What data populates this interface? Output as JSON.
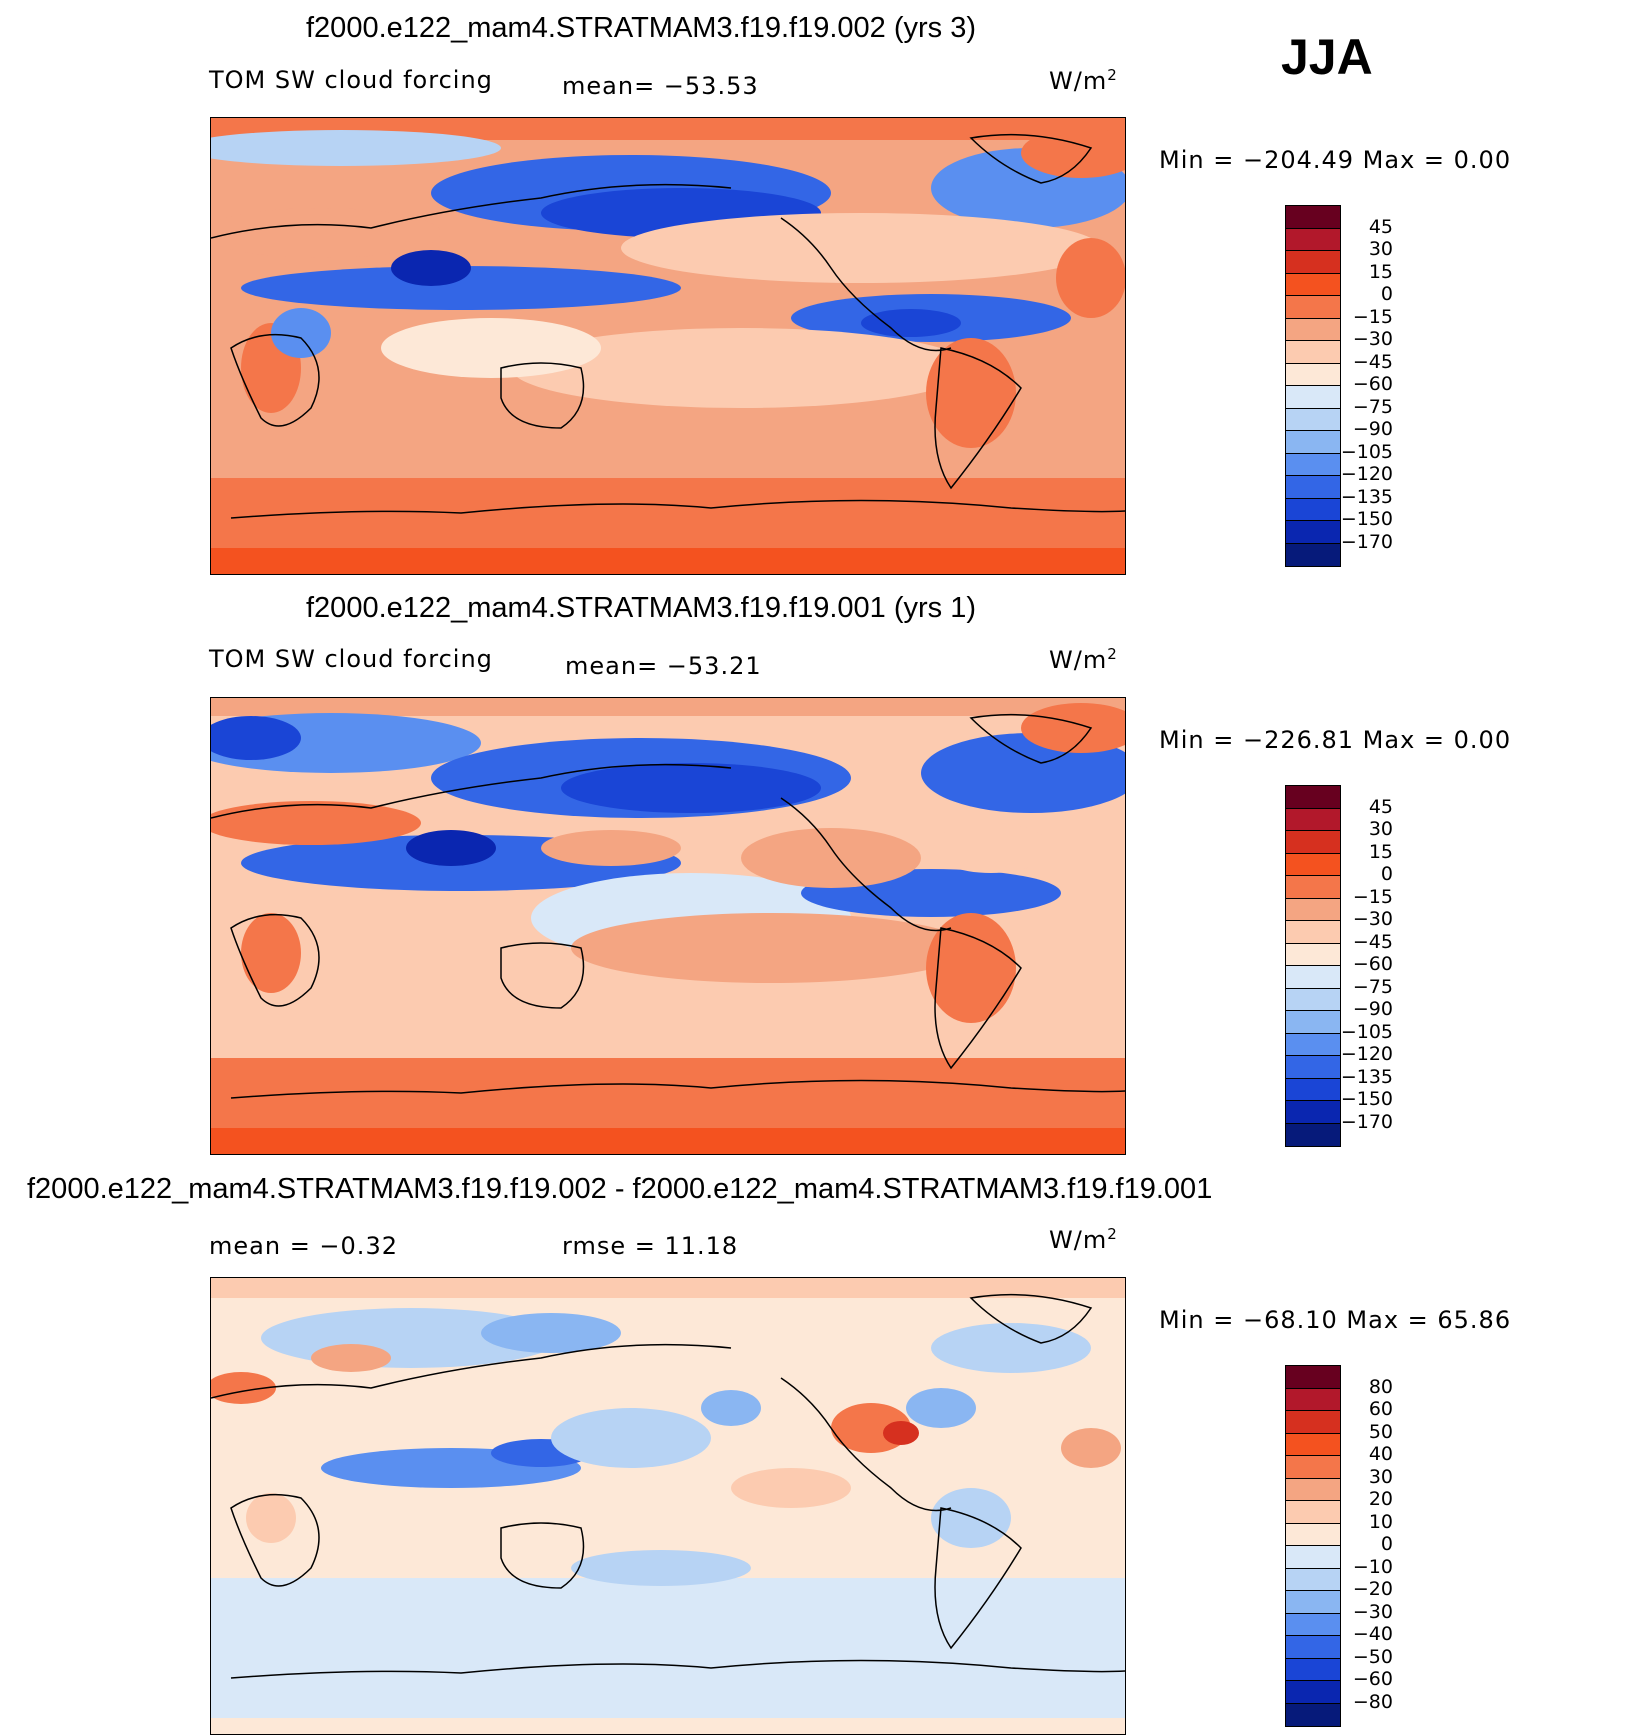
{
  "season": "JJA",
  "panels": [
    {
      "title": "f2000.e122_mam4.STRATMAM3.f19.f19.002 (yrs 3)",
      "variable": "TOM SW cloud forcing",
      "stat1": "mean= −53.53",
      "stat2": "",
      "units": "W/m",
      "units_sup": "2",
      "minmax": "Min = −204.49 Max =    0.00",
      "colorbar_labels": [
        "45",
        "30",
        "15",
        "0",
        "−15",
        "−30",
        "−45",
        "−60",
        "−75",
        "−90",
        "−105",
        "−120",
        "−135",
        "−150",
        "−170"
      ]
    },
    {
      "title": "f2000.e122_mam4.STRATMAM3.f19.f19.001 (yrs 1)",
      "variable": "TOM SW cloud forcing",
      "stat1": "mean= −53.21",
      "stat2": "",
      "units": "W/m",
      "units_sup": "2",
      "minmax": "Min = −226.81 Max =    0.00",
      "colorbar_labels": [
        "45",
        "30",
        "15",
        "0",
        "−15",
        "−30",
        "−45",
        "−60",
        "−75",
        "−90",
        "−105",
        "−120",
        "−135",
        "−150",
        "−170"
      ]
    },
    {
      "title": "f2000.e122_mam4.STRATMAM3.f19.f19.002 - f2000.e122_mam4.STRATMAM3.f19.f19.001",
      "variable": "",
      "stat1": "mean =   −0.32",
      "stat2": "rmse =   11.18",
      "units": "W/m",
      "units_sup": "2",
      "minmax": "Min = −68.10 Max =   65.86",
      "colorbar_labels": [
        "80",
        "60",
        "50",
        "40",
        "30",
        "20",
        "10",
        "0",
        "−10",
        "−20",
        "−30",
        "−40",
        "−50",
        "−60",
        "−80"
      ]
    }
  ],
  "colors": {
    "scale": [
      "#67001f",
      "#b2182b",
      "#d6301f",
      "#f4521f",
      "#f4764a",
      "#f4a582",
      "#fccbb0",
      "#fde8d7",
      "#d9e8f8",
      "#b7d3f4",
      "#8ab6f2",
      "#5a8ff0",
      "#3366e6",
      "#1a45d6",
      "#0a26b0",
      "#061a7a"
    ]
  },
  "chart_data": [
    {
      "type": "heatmap",
      "title": "f2000.e122_mam4.STRATMAM3.f19.f19.002 (yrs 3)",
      "variable": "TOM SW cloud forcing",
      "units": "W/m2",
      "mean": -53.53,
      "min": -204.49,
      "max": 0.0,
      "contour_levels": [
        45,
        30,
        15,
        0,
        -15,
        -30,
        -45,
        -60,
        -75,
        -90,
        -105,
        -120,
        -135,
        -150,
        -170
      ]
    },
    {
      "type": "heatmap",
      "title": "f2000.e122_mam4.STRATMAM3.f19.f19.001 (yrs 1)",
      "variable": "TOM SW cloud forcing",
      "units": "W/m2",
      "mean": -53.21,
      "min": -226.81,
      "max": 0.0,
      "contour_levels": [
        45,
        30,
        15,
        0,
        -15,
        -30,
        -45,
        -60,
        -75,
        -90,
        -105,
        -120,
        -135,
        -150,
        -170
      ]
    },
    {
      "type": "heatmap",
      "title": "f2000.e122_mam4.STRATMAM3.f19.f19.002 - f2000.e122_mam4.STRATMAM3.f19.f19.001",
      "units": "W/m2",
      "mean": -0.32,
      "rmse": 11.18,
      "min": -68.1,
      "max": 65.86,
      "contour_levels": [
        80,
        60,
        50,
        40,
        30,
        20,
        10,
        0,
        -10,
        -20,
        -30,
        -40,
        -50,
        -60,
        -80
      ]
    }
  ]
}
